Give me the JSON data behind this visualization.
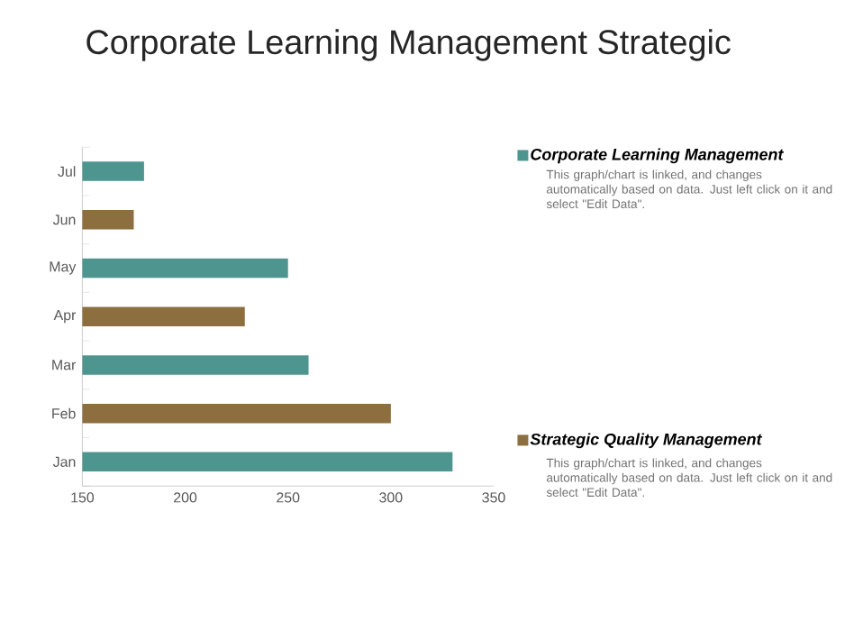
{
  "chart_data": {
    "type": "bar",
    "orientation": "horizontal",
    "title": "Corporate Learning Management Strategic",
    "categories": [
      "Jul",
      "Jun",
      "May",
      "Apr",
      "Mar",
      "Feb",
      "Jan"
    ],
    "series": [
      {
        "name": "Corporate Learning Management",
        "color": "#4e9590",
        "values": [
          180,
          null,
          250,
          null,
          260,
          null,
          330
        ]
      },
      {
        "name": "Strategic Quality Management",
        "color": "#8c6e3f",
        "values": [
          null,
          175,
          null,
          229,
          null,
          300,
          null
        ]
      }
    ],
    "xlim": [
      150,
      350
    ],
    "xticks": [
      150,
      200,
      250,
      300,
      350
    ],
    "grid": false,
    "legend": "right",
    "annotations": [
      "This graph/chart is linked, and changes automatically based on data. Just left click on it and select \"Edit Data\".",
      "This graph/chart is linked, and changes automatically based on data. Just left click on it and select \"Edit Data\"."
    ]
  }
}
